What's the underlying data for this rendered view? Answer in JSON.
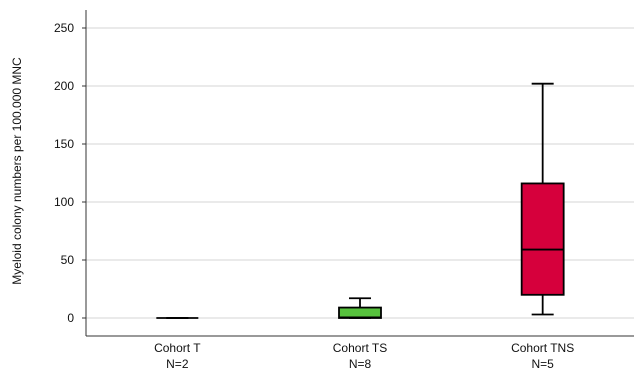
{
  "chart_data": {
    "type": "boxplot",
    "ylabel": "Myeloid colony numbers per 100.000 MNC",
    "ylim": [
      0,
      260
    ],
    "yticks": [
      0,
      50,
      100,
      150,
      200,
      250
    ],
    "grid": "horizontal",
    "categories": [
      {
        "name": "Cohort T",
        "n_label": "N=2",
        "min": 0,
        "q1": 0,
        "median": 0,
        "q3": 0,
        "max": 0,
        "color": "#000000"
      },
      {
        "name": "Cohort TS",
        "n_label": "N=8",
        "min": 0,
        "q1": 0,
        "median": 0.5,
        "q3": 9,
        "max": 17,
        "color": "#57c23d"
      },
      {
        "name": "Cohort TNS",
        "n_label": "N=5",
        "min": 3,
        "q1": 20,
        "median": 59,
        "q3": 116,
        "max": 202,
        "color": "#d6003c"
      }
    ]
  }
}
